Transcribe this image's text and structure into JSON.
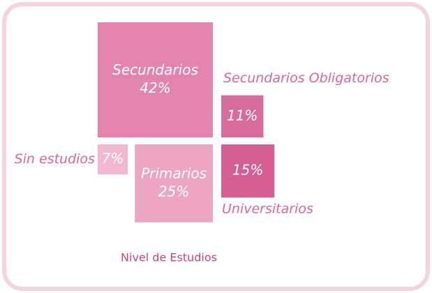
{
  "chart_data": {
    "type": "square",
    "title": "Nivel de Estudios",
    "categories": [
      "Secundarios",
      "Secundarios Obligatorios",
      "Sin estudios",
      "Primarios",
      "Universitarios"
    ],
    "values": [
      42,
      11,
      7,
      25,
      15
    ],
    "value_labels": [
      "42%",
      "11%",
      "7%",
      "25%",
      "15%"
    ],
    "colors": [
      "#e284ae",
      "#d86b9e",
      "#f2b8cf",
      "#eca6c4",
      "#d55e95"
    ]
  }
}
